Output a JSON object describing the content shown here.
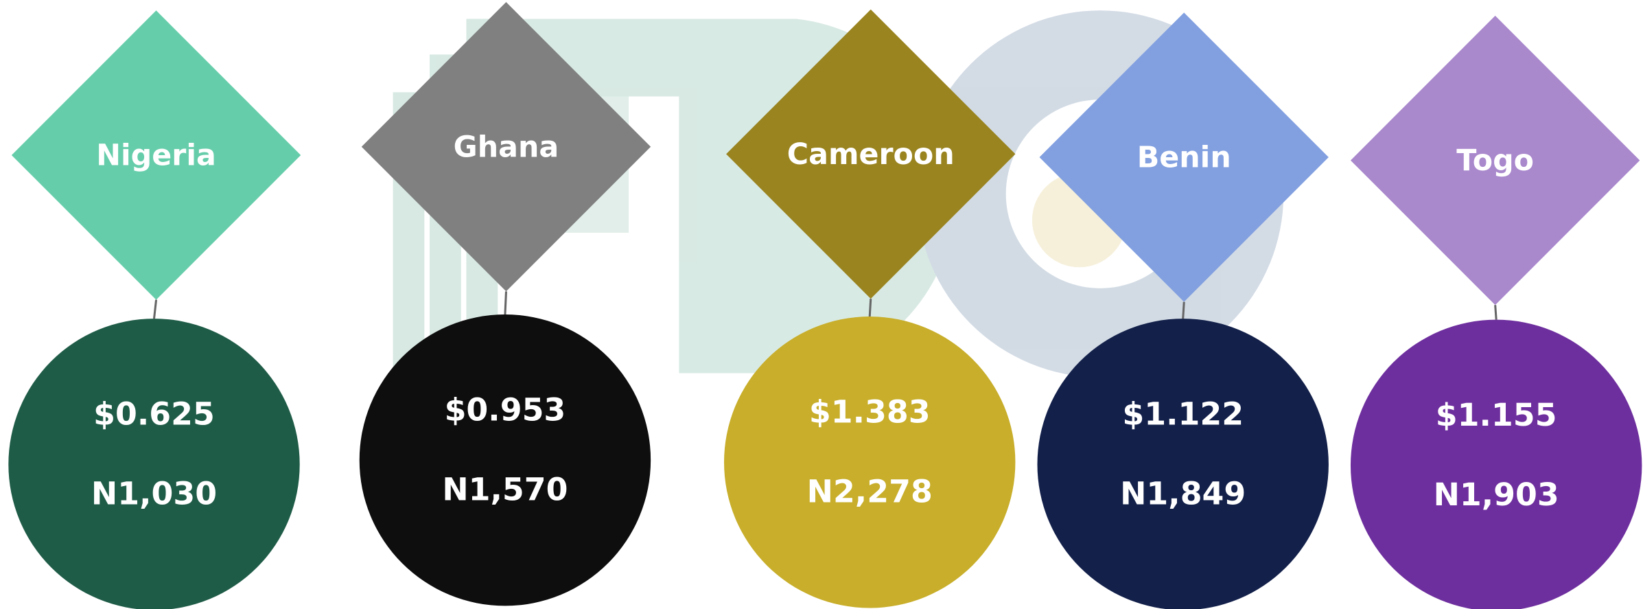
{
  "items": [
    {
      "country": "Nigeria",
      "usd": "$0.625",
      "naira": "N1,030"
    },
    {
      "country": "Ghana",
      "usd": "$0.953",
      "naira": "N1,570"
    },
    {
      "country": "Cameroon",
      "usd": "$1.383",
      "naira": "N2,278"
    },
    {
      "country": "Benin",
      "usd": "$1.122",
      "naira": "N1,849"
    },
    {
      "country": "Togo",
      "usd": "$1.155",
      "naira": "N1,903"
    }
  ]
}
